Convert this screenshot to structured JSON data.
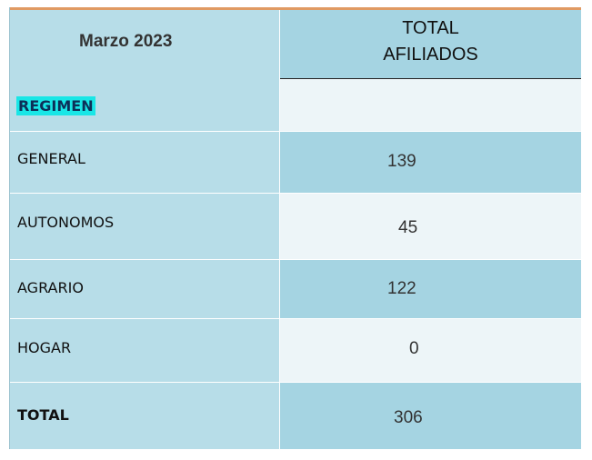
{
  "table": {
    "month_label": "Marzo 2023",
    "total_header_line1": "TOTAL",
    "total_header_line2": "AFILIADOS",
    "section_label": "REGIMEN",
    "rows": [
      {
        "label": "GENERAL",
        "value": "139"
      },
      {
        "label": "AUTONOMOS",
        "value": "45"
      },
      {
        "label": "AGRARIO",
        "value": "122"
      },
      {
        "label": "HOGAR",
        "value": "0"
      }
    ],
    "total_label": "TOTAL",
    "total_value": "306"
  },
  "colors": {
    "top_rule": "#e09a63",
    "left_column": "#b7dde8",
    "dark_band": "#a5d4e2",
    "light_band": "#edf5f8",
    "regimen_highlight": "#19e6e6"
  }
}
